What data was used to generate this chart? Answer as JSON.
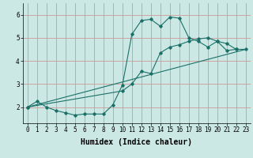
{
  "bg_color": "#cce8e4",
  "grid_color": "#cc9999",
  "line_color": "#1a7068",
  "xlabel": "Humidex (Indice chaleur)",
  "xlabel_fontsize": 7,
  "tick_fontsize": 5.5,
  "xlim": [
    -0.5,
    23.5
  ],
  "ylim": [
    1.3,
    6.5
  ],
  "yticks": [
    2,
    3,
    4,
    5,
    6
  ],
  "xticks": [
    0,
    1,
    2,
    3,
    4,
    5,
    6,
    7,
    8,
    9,
    10,
    11,
    12,
    13,
    14,
    15,
    16,
    17,
    18,
    19,
    20,
    21,
    22,
    23
  ],
  "curve1_x": [
    0,
    1,
    2,
    3,
    4,
    5,
    6,
    7,
    8,
    9,
    10,
    11,
    12,
    13,
    14,
    15,
    16,
    17,
    18,
    19,
    20,
    21,
    22
  ],
  "curve1_y": [
    2.0,
    2.25,
    2.0,
    1.85,
    1.75,
    1.65,
    1.7,
    1.7,
    1.7,
    2.1,
    2.95,
    5.15,
    5.75,
    5.8,
    5.5,
    5.9,
    5.85,
    5.0,
    4.85,
    4.6,
    4.85,
    4.45,
    4.5
  ],
  "curve2_x": [
    0,
    23
  ],
  "curve2_y": [
    2.0,
    4.5
  ],
  "curve3_x": [
    0,
    10,
    11,
    12,
    13,
    14,
    15,
    16,
    17,
    18,
    19,
    20,
    21,
    22,
    23
  ],
  "curve3_y": [
    2.0,
    2.7,
    3.0,
    3.55,
    3.45,
    4.35,
    4.6,
    4.7,
    4.85,
    4.95,
    5.0,
    4.85,
    4.75,
    4.5,
    4.5
  ],
  "marker_size": 1.8,
  "line_width": 0.8
}
